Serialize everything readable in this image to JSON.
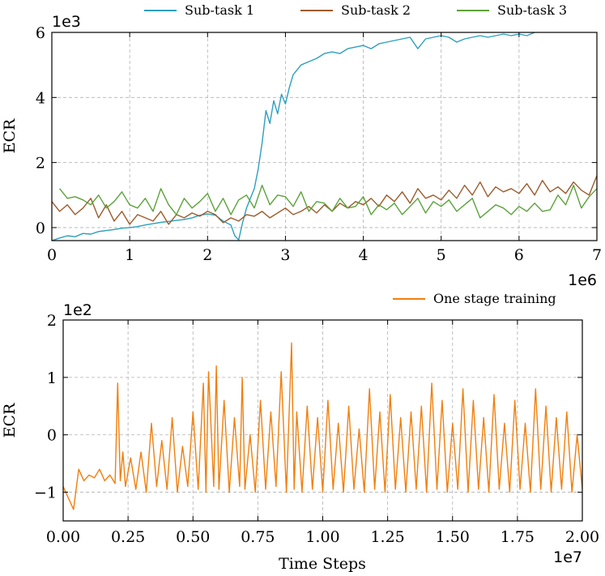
{
  "chart_data": [
    {
      "type": "line",
      "ylabel": "ECR",
      "xlabel": "",
      "x_scale_label": "1e6",
      "y_scale_label": "1e3",
      "xlim": [
        0,
        7000000
      ],
      "ylim": [
        -400,
        6000
      ],
      "x_ticks": [
        0,
        1000000,
        2000000,
        3000000,
        4000000,
        5000000,
        6000000,
        7000000
      ],
      "x_tick_labels": [
        "0",
        "1",
        "2",
        "3",
        "4",
        "5",
        "6",
        "7"
      ],
      "y_ticks": [
        0,
        2000,
        4000,
        6000
      ],
      "y_tick_labels": [
        "0",
        "2",
        "4",
        "6"
      ],
      "grid": true,
      "legend_placement": "top, above plot",
      "series": [
        {
          "name": "Sub-task 1",
          "color": "#2e9fbe",
          "x": [
            0,
            100000,
            200000,
            300000,
            400000,
            500000,
            600000,
            700000,
            800000,
            900000,
            1000000,
            1100000,
            1200000,
            1300000,
            1400000,
            1500000,
            1600000,
            1700000,
            1800000,
            1900000,
            2000000,
            2100000,
            2200000,
            2300000,
            2350000,
            2400000,
            2450000,
            2500000,
            2550000,
            2600000,
            2650000,
            2700000,
            2750000,
            2800000,
            2850000,
            2900000,
            2950000,
            3000000,
            3050000,
            3100000,
            3200000,
            3300000,
            3400000,
            3500000,
            3600000,
            3700000,
            3800000,
            3900000,
            4000000,
            4100000,
            4200000,
            4300000,
            4400000,
            4500000,
            4600000,
            4700000,
            4800000,
            4900000,
            5000000,
            5100000,
            5200000,
            5300000,
            5400000,
            5500000,
            5600000,
            5700000,
            5800000,
            5900000,
            6000000,
            6100000,
            6200000
          ],
          "values": [
            -400,
            -320,
            -250,
            -280,
            -180,
            -200,
            -120,
            -90,
            -60,
            -20,
            0,
            30,
            80,
            120,
            160,
            190,
            220,
            250,
            300,
            380,
            420,
            380,
            200,
            80,
            -250,
            -380,
            150,
            600,
            900,
            1200,
            1800,
            2600,
            3600,
            3200,
            3900,
            3500,
            4100,
            3800,
            4300,
            4700,
            5000,
            5100,
            5200,
            5350,
            5400,
            5350,
            5500,
            5550,
            5600,
            5500,
            5650,
            5700,
            5750,
            5800,
            5850,
            5500,
            5800,
            5850,
            5900,
            5850,
            5700,
            5800,
            5850,
            5900,
            5850,
            5900,
            5950,
            5900,
            5950,
            5900,
            6000
          ]
        },
        {
          "name": "Sub-task 2",
          "color": "#9c5b2c",
          "x": [
            0,
            100000,
            200000,
            300000,
            400000,
            500000,
            600000,
            700000,
            800000,
            900000,
            1000000,
            1100000,
            1200000,
            1300000,
            1400000,
            1500000,
            1600000,
            1700000,
            1800000,
            1900000,
            2000000,
            2100000,
            2200000,
            2300000,
            2400000,
            2500000,
            2600000,
            2700000,
            2800000,
            2900000,
            3000000,
            3100000,
            3200000,
            3300000,
            3400000,
            3500000,
            3600000,
            3700000,
            3800000,
            3900000,
            4000000,
            4100000,
            4200000,
            4300000,
            4400000,
            4500000,
            4600000,
            4700000,
            4800000,
            4900000,
            5000000,
            5100000,
            5200000,
            5300000,
            5400000,
            5500000,
            5600000,
            5700000,
            5800000,
            5900000,
            6000000,
            6100000,
            6200000,
            6300000,
            6400000,
            6500000,
            6600000,
            6700000,
            6800000,
            6900000,
            7000000
          ],
          "values": [
            800,
            500,
            700,
            400,
            600,
            900,
            300,
            700,
            200,
            500,
            100,
            400,
            300,
            200,
            500,
            100,
            400,
            300,
            450,
            350,
            500,
            400,
            150,
            300,
            200,
            400,
            350,
            500,
            300,
            450,
            600,
            400,
            500,
            650,
            450,
            700,
            500,
            750,
            600,
            800,
            700,
            900,
            650,
            1000,
            800,
            1100,
            750,
            1200,
            900,
            1000,
            850,
            1150,
            900,
            1300,
            1000,
            1400,
            950,
            1250,
            1100,
            1200,
            1050,
            1350,
            1000,
            1450,
            1100,
            1250,
            1050,
            1400,
            1150,
            1000,
            1600
          ]
        },
        {
          "name": "Sub-task 3",
          "color": "#5ba23a",
          "x": [
            100000,
            200000,
            300000,
            400000,
            500000,
            600000,
            700000,
            800000,
            900000,
            1000000,
            1100000,
            1200000,
            1300000,
            1400000,
            1500000,
            1600000,
            1700000,
            1800000,
            1900000,
            2000000,
            2100000,
            2200000,
            2300000,
            2400000,
            2500000,
            2600000,
            2700000,
            2800000,
            2900000,
            3000000,
            3100000,
            3200000,
            3300000,
            3400000,
            3500000,
            3600000,
            3700000,
            3800000,
            3900000,
            4000000,
            4100000,
            4200000,
            4300000,
            4400000,
            4500000,
            4600000,
            4700000,
            4800000,
            4900000,
            5000000,
            5100000,
            5200000,
            5300000,
            5400000,
            5500000,
            5600000,
            5700000,
            5800000,
            5900000,
            6000000,
            6100000,
            6200000,
            6300000,
            6400000,
            6500000,
            6600000,
            6700000,
            6800000,
            6900000,
            7000000
          ],
          "values": [
            1200,
            900,
            950,
            850,
            700,
            1000,
            600,
            800,
            1100,
            700,
            600,
            900,
            500,
            1200,
            700,
            400,
            900,
            600,
            800,
            1050,
            500,
            900,
            400,
            850,
            1000,
            600,
            1300,
            700,
            1000,
            950,
            650,
            1100,
            500,
            800,
            750,
            500,
            900,
            600,
            650,
            950,
            400,
            700,
            550,
            750,
            400,
            650,
            900,
            450,
            800,
            650,
            850,
            500,
            700,
            900,
            300,
            500,
            700,
            600,
            400,
            650,
            500,
            750,
            500,
            550,
            1000,
            700,
            1300,
            600,
            950,
            1200
          ]
        }
      ]
    },
    {
      "type": "line",
      "ylabel": "ECR",
      "xlabel": "Time Steps",
      "x_scale_label": "1e7",
      "y_scale_label": "1e2",
      "xlim": [
        0,
        20000000
      ],
      "ylim": [
        -150,
        200
      ],
      "x_ticks": [
        0,
        2500000,
        5000000,
        7500000,
        10000000,
        12500000,
        15000000,
        17500000,
        20000000
      ],
      "x_tick_labels": [
        "0.00",
        "0.25",
        "0.50",
        "0.75",
        "1.00",
        "1.25",
        "1.50",
        "1.75",
        "2.00"
      ],
      "y_ticks": [
        -100,
        0,
        100,
        200
      ],
      "y_tick_labels": [
        "−1",
        "0",
        "1",
        "2"
      ],
      "grid": true,
      "legend_placement": "top-right, above plot",
      "series": [
        {
          "name": "One stage training",
          "color": "#f07f0f",
          "x": [
            0,
            200000,
            400000,
            600000,
            800000,
            1000000,
            1200000,
            1400000,
            1600000,
            1800000,
            2000000,
            2100000,
            2200000,
            2300000,
            2400000,
            2600000,
            2800000,
            3000000,
            3200000,
            3400000,
            3600000,
            3800000,
            4000000,
            4200000,
            4400000,
            4600000,
            4800000,
            5000000,
            5200000,
            5400000,
            5500000,
            5600000,
            5800000,
            5900000,
            6000000,
            6200000,
            6400000,
            6600000,
            6800000,
            6900000,
            7000000,
            7200000,
            7400000,
            7600000,
            7800000,
            8000000,
            8200000,
            8400000,
            8600000,
            8800000,
            8900000,
            9000000,
            9200000,
            9400000,
            9600000,
            9800000,
            10000000,
            10200000,
            10400000,
            10600000,
            10800000,
            11000000,
            11200000,
            11400000,
            11600000,
            11800000,
            12000000,
            12200000,
            12400000,
            12600000,
            12800000,
            13000000,
            13200000,
            13400000,
            13600000,
            13800000,
            14000000,
            14200000,
            14400000,
            14600000,
            14800000,
            15000000,
            15200000,
            15400000,
            15600000,
            15800000,
            16000000,
            16200000,
            16400000,
            16600000,
            16800000,
            17000000,
            17200000,
            17400000,
            17600000,
            17800000,
            18000000,
            18200000,
            18400000,
            18600000,
            18800000,
            19000000,
            19200000,
            19400000,
            19600000,
            19800000,
            20000000
          ],
          "values": [
            -90,
            -110,
            -130,
            -60,
            -80,
            -70,
            -75,
            -60,
            -80,
            -70,
            -85,
            90,
            -80,
            -30,
            -90,
            -40,
            -95,
            -30,
            -100,
            20,
            -90,
            -10,
            -95,
            30,
            -100,
            -20,
            -90,
            40,
            -95,
            90,
            -100,
            110,
            -90,
            120,
            -95,
            60,
            -100,
            30,
            -90,
            100,
            -95,
            0,
            -100,
            60,
            -95,
            40,
            -90,
            110,
            -100,
            160,
            -95,
            40,
            -100,
            50,
            -95,
            30,
            -100,
            60,
            -95,
            20,
            -100,
            50,
            -95,
            10,
            -100,
            80,
            -95,
            40,
            -100,
            70,
            -95,
            30,
            -100,
            40,
            -95,
            50,
            -100,
            90,
            -95,
            60,
            -100,
            20,
            -95,
            80,
            -100,
            60,
            -95,
            30,
            -100,
            70,
            -95,
            20,
            -100,
            60,
            -95,
            20,
            -100,
            80,
            -95,
            50,
            -100,
            30,
            -95,
            40,
            -100,
            0,
            -95
          ]
        }
      ]
    }
  ]
}
